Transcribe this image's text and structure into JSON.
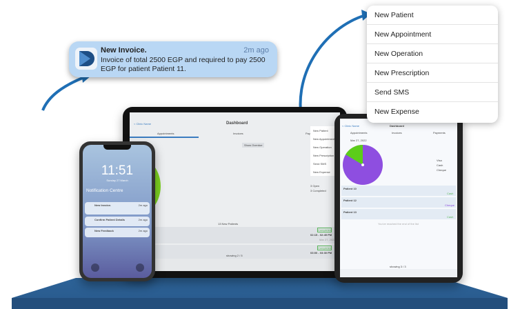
{
  "notification": {
    "title": "New Invoice.",
    "time": "2m ago",
    "body": "Invoice of total 2500 EGP and required to pay 2500 EGP for patient Patient 11."
  },
  "menu": {
    "items": [
      "New Patient",
      "New Appointment",
      "New Operation",
      "New Prescription",
      "Send SMS",
      "New Expense"
    ]
  },
  "tablet_landscape": {
    "back": "< Clinic Name",
    "title": "Dashboard",
    "tabs": [
      "Appointments",
      "Invoices",
      "Payments"
    ],
    "date": "Mar 27, 2022",
    "show_overdue": "Show Overdue",
    "menu": [
      "New Patient",
      "New Appointment",
      "New Operation",
      "New Prescription",
      "Send SMS",
      "New Expense"
    ],
    "legend": [
      "3 Open",
      "3 Completed"
    ],
    "new_patients": "13 New Patients",
    "rows": [
      {
        "status": "Completed",
        "time": "02:15 - 02:45 PM",
        "date": "Mar 27, 2022"
      },
      {
        "status": "Completed",
        "time": "03:00 - 03:30 PM"
      }
    ],
    "showing": "showing 2 / 5",
    "colors": {
      "open": "#3a7cc0",
      "completed": "#7ed321"
    }
  },
  "tablet_portrait": {
    "back": "< Clinic Name",
    "title": "Dashboard",
    "tabs": [
      "Appointments",
      "Invoices",
      "Payments"
    ],
    "date": "Mar 27, 2022",
    "legend": [
      "Visa",
      "Cash",
      "Cheque"
    ],
    "rows": [
      {
        "name": "Patient 10",
        "method": "Cash"
      },
      {
        "name": "Patient 12",
        "method": "Cheque"
      },
      {
        "name": "Patient 13",
        "method": "Cash"
      }
    ],
    "end_text": "You've reached the end of the list",
    "showing": "showing 3 / 3",
    "colors": {
      "cheque": "#8e4ee0",
      "cash": "#5ccd1a"
    }
  },
  "phone": {
    "time": "11:51",
    "date": "Sunday 27 March",
    "notification_centre": "Notification Centre",
    "notifications": [
      {
        "title": "New Invoice.",
        "time": "2m ago"
      },
      {
        "title": "Confirm Patient Details",
        "time": "2m ago"
      },
      {
        "title": "New Feedback",
        "time": "2m ago"
      }
    ]
  },
  "colors": {
    "accent": "#1f6fb5",
    "platform": "#2b5f93",
    "notif_bg": "#b9d7f4"
  }
}
